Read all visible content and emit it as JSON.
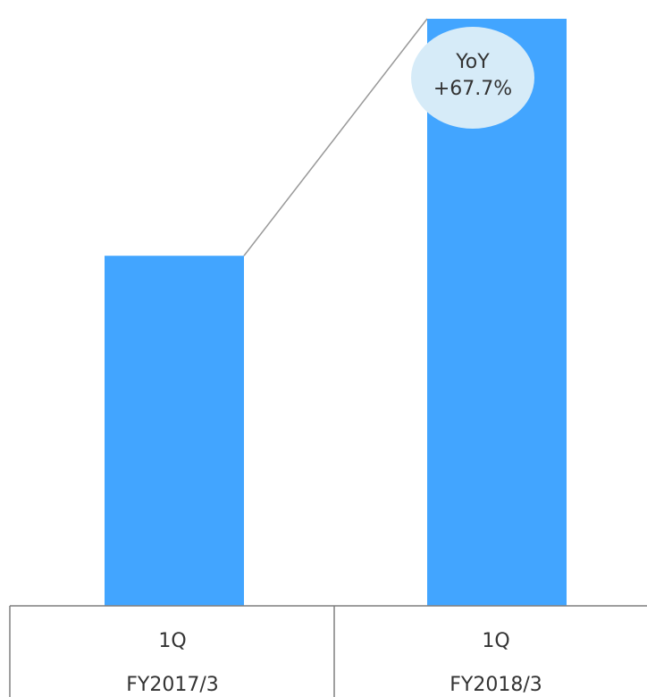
{
  "chart_data": {
    "type": "bar",
    "categories": [
      {
        "period": "1Q",
        "fiscal_year": "FY2017/3"
      },
      {
        "period": "1Q",
        "fiscal_year": "FY2018/3"
      }
    ],
    "values": [
      100,
      167.7
    ],
    "ylim": [
      0,
      170
    ],
    "grid": false,
    "legend": "none",
    "annotation": {
      "line1": "YoY",
      "line2": "+67.7%"
    },
    "colors": {
      "bar": "#42a5ff",
      "connector": "#999999",
      "badge": "#d6ebf8",
      "table_border": "#7f7f7f",
      "text": "#333333"
    }
  }
}
